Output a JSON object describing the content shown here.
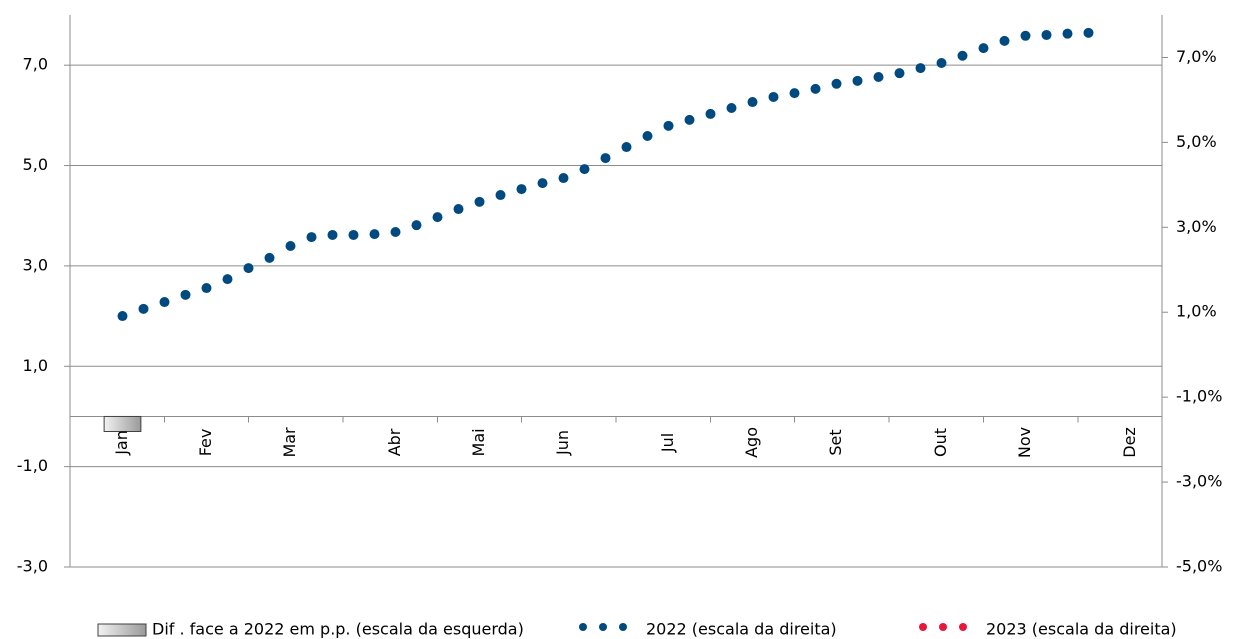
{
  "chart_data": {
    "type": "combo",
    "categories": [
      null,
      null,
      "Jan",
      null,
      null,
      null,
      "Fev",
      null,
      null,
      null,
      "Mar",
      null,
      null,
      null,
      null,
      "Abr",
      null,
      null,
      null,
      "Mai",
      null,
      null,
      null,
      "Jun",
      null,
      null,
      null,
      null,
      "Jul",
      null,
      null,
      null,
      "Ago",
      null,
      null,
      null,
      "Set",
      null,
      null,
      null,
      null,
      "Out",
      null,
      null,
      null,
      "Nov",
      null,
      null,
      null,
      null,
      "Dez",
      null
    ],
    "ylim": [
      -3,
      8
    ],
    "yticks": [
      {
        "value": -3,
        "label": "-3,0"
      },
      {
        "value": -1,
        "label": "-1,0"
      },
      {
        "value": 1,
        "label": "1,0"
      },
      {
        "value": 3,
        "label": "3,0"
      },
      {
        "value": 5,
        "label": "5,0"
      },
      {
        "value": 7,
        "label": "7,0"
      }
    ],
    "y2lim": [
      -5,
      8
    ],
    "y2ticks": [
      {
        "value": -5,
        "label": "-5,0%"
      },
      {
        "value": -3,
        "label": "-3,0%"
      },
      {
        "value": -1,
        "label": "-1,0%"
      },
      {
        "value": 1,
        "label": "1,0%"
      },
      {
        "value": 3,
        "label": "3,0%"
      },
      {
        "value": 5,
        "label": "5,0%"
      },
      {
        "value": 7,
        "label": "7,0%"
      }
    ],
    "grid": true,
    "series": [
      {
        "name": "Dif . face a 2022 em p.p. (escala da esquerda)",
        "type": "bar",
        "color": "#c0c0c0",
        "values": [
          null,
          null,
          -0.3,
          null,
          null,
          null,
          null,
          null,
          null,
          null,
          null,
          null,
          null,
          null,
          null,
          null,
          null,
          null,
          null,
          null,
          null,
          null,
          null,
          null,
          null,
          null,
          null,
          null,
          null,
          null,
          null,
          null,
          null,
          null,
          null,
          null,
          null,
          null,
          null,
          null,
          null,
          null,
          null,
          null,
          null,
          null,
          null,
          null,
          null,
          null,
          null,
          null
        ]
      },
      {
        "name": "2022 (escala da direita)",
        "type": "dots",
        "axis": "y2",
        "color": "#004a80",
        "values": [
          null,
          null,
          0.91,
          1.08,
          1.24,
          1.41,
          1.57,
          1.78,
          2.04,
          2.28,
          2.56,
          2.77,
          2.82,
          2.82,
          2.84,
          2.89,
          3.05,
          3.24,
          3.43,
          3.6,
          3.76,
          3.9,
          4.04,
          4.16,
          4.37,
          4.63,
          4.89,
          5.15,
          5.39,
          5.53,
          5.67,
          5.81,
          5.95,
          6.07,
          6.16,
          6.26,
          6.38,
          6.45,
          6.54,
          6.63,
          6.75,
          6.87,
          7.04,
          7.22,
          7.39,
          7.51,
          7.53,
          7.56,
          7.58,
          null,
          null,
          null
        ]
      },
      {
        "name": "2023 (escala da direita)",
        "type": "dots",
        "axis": "y2",
        "color": "#e8173c",
        "values": [
          null,
          null,
          null,
          null,
          null,
          null,
          null,
          null,
          null,
          null,
          null,
          null,
          null,
          null,
          null,
          null,
          null,
          null,
          null,
          null,
          null,
          null,
          null,
          null,
          null,
          null,
          null,
          null,
          null,
          null,
          null,
          null,
          null,
          null,
          null,
          null,
          null,
          null,
          null,
          null,
          null,
          null,
          null,
          null,
          null,
          null,
          null,
          null,
          null,
          null,
          null,
          null
        ]
      }
    ]
  }
}
